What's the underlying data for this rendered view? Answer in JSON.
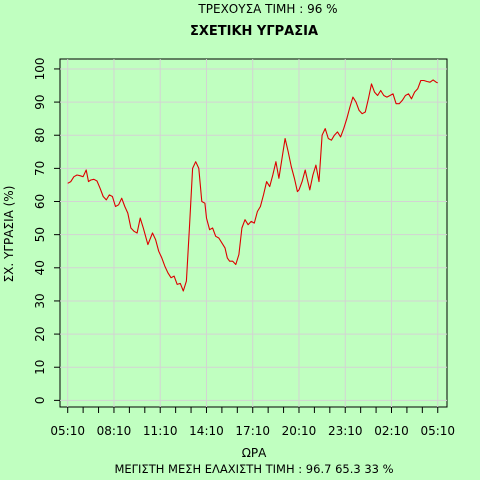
{
  "chart_data": {
    "type": "line",
    "supertitle": "ΤΡΕΧΟΥΣΑ ΤΙΜΗ : 96 %",
    "title": "ΣΧΕΤΙΚΗ ΥΓΡΑΣΙΑ",
    "xlabel": "ΩΡΑ",
    "ylabel": "ΣΧ. ΥΓΡΑΣΙΑ (%)",
    "footer": "ΜΕΓΙΣΤΗ ΜΕΣΗ ΕΛΑΧΙΣΤΗ ΤΙΜΗ :  96.7  65.3  33   %",
    "ylim": [
      -2,
      103
    ],
    "xlim": [
      -0.5,
      24.6
    ],
    "yticks": [
      0,
      10,
      20,
      30,
      40,
      50,
      60,
      70,
      80,
      90,
      100
    ],
    "xtick_labels": [
      "05:10",
      "08:10",
      "11:10",
      "14:10",
      "17:10",
      "20:10",
      "23:10",
      "02:10",
      "05:10"
    ],
    "xtick_label_positions": [
      0,
      3,
      6,
      9,
      12,
      15,
      18,
      21,
      24
    ],
    "xticks": [
      0,
      1,
      2,
      3,
      4,
      5,
      6,
      7,
      8,
      9,
      10,
      11,
      12,
      13,
      14,
      15,
      16,
      17,
      18,
      19,
      20,
      21,
      22,
      23,
      24
    ],
    "grid": true,
    "line_color": "#dd0000",
    "grid_color": "#d3d3d3",
    "series": [
      {
        "x": [
          0,
          0.2,
          0.4,
          0.6,
          0.8,
          1.0,
          1.2,
          1.35,
          1.5,
          1.7,
          1.9,
          2.1,
          2.3,
          2.5,
          2.7,
          2.9,
          3.1,
          3.3,
          3.5,
          3.7,
          3.9,
          4.1,
          4.3,
          4.5,
          4.7,
          4.9,
          5.2,
          5.5,
          5.7,
          5.9,
          6.1,
          6.3,
          6.5,
          6.7,
          6.9,
          7.1,
          7.3,
          7.5,
          7.7,
          7.9,
          8.1,
          8.3,
          8.5,
          8.7,
          8.9,
          9.0,
          9.2,
          9.4,
          9.6,
          9.8,
          10.0,
          10.2,
          10.35,
          10.5,
          10.7,
          10.9,
          11.1,
          11.3,
          11.5,
          11.7,
          11.9,
          12.1,
          12.3,
          12.5,
          12.7,
          12.9,
          13.1,
          13.3,
          13.5,
          13.7,
          13.9,
          14.1,
          14.3,
          14.5,
          14.7,
          14.9,
          15.0,
          15.2,
          15.4,
          15.5,
          15.7,
          15.9,
          16.1,
          16.3,
          16.5,
          16.7,
          16.9,
          17.1,
          17.3,
          17.5,
          17.7,
          17.9,
          18.1,
          18.3,
          18.5,
          18.7,
          18.9,
          19.1,
          19.3,
          19.5,
          19.7,
          19.9,
          20.1,
          20.3,
          20.5,
          20.7,
          20.9,
          21.1,
          21.3,
          21.5,
          21.7,
          21.9,
          22.1,
          22.3,
          22.5,
          22.7,
          22.9,
          23.1,
          23.3,
          23.5,
          23.7,
          23.9,
          24.0
        ],
        "y": [
          65.5,
          66,
          67.5,
          68,
          67.8,
          67.5,
          69.5,
          66,
          66.5,
          66.7,
          66.2,
          64,
          61.5,
          60.5,
          62,
          61.5,
          58.5,
          59,
          61,
          58.5,
          56.5,
          52,
          51,
          50.5,
          55,
          52,
          47,
          50.5,
          48.5,
          45,
          43,
          40.5,
          38.5,
          37,
          37.5,
          35,
          35.3,
          33,
          36,
          52.5,
          70,
          72,
          70,
          60,
          59.5,
          55,
          51.5,
          52,
          49.5,
          49,
          47.5,
          46,
          43,
          42,
          42,
          41,
          44,
          52,
          54.5,
          53,
          54,
          53.5,
          57,
          58.5,
          62,
          66,
          64.5,
          68,
          72,
          67,
          73,
          79,
          75,
          70.5,
          67,
          63,
          63.5,
          66,
          69.5,
          67.5,
          63.5,
          68,
          71,
          66,
          80,
          82,
          79,
          78.5,
          80,
          81,
          79.5,
          82,
          85,
          88.5,
          91.5,
          90,
          87.5,
          86.5,
          87,
          91,
          95.5,
          93,
          92,
          93.5,
          92,
          91.5,
          92,
          92.5,
          89.5,
          89.5,
          90.5,
          92,
          92.5,
          91,
          93,
          94,
          96.5,
          96.5,
          96.2,
          96,
          96.7,
          96,
          95.8
        ]
      }
    ]
  }
}
